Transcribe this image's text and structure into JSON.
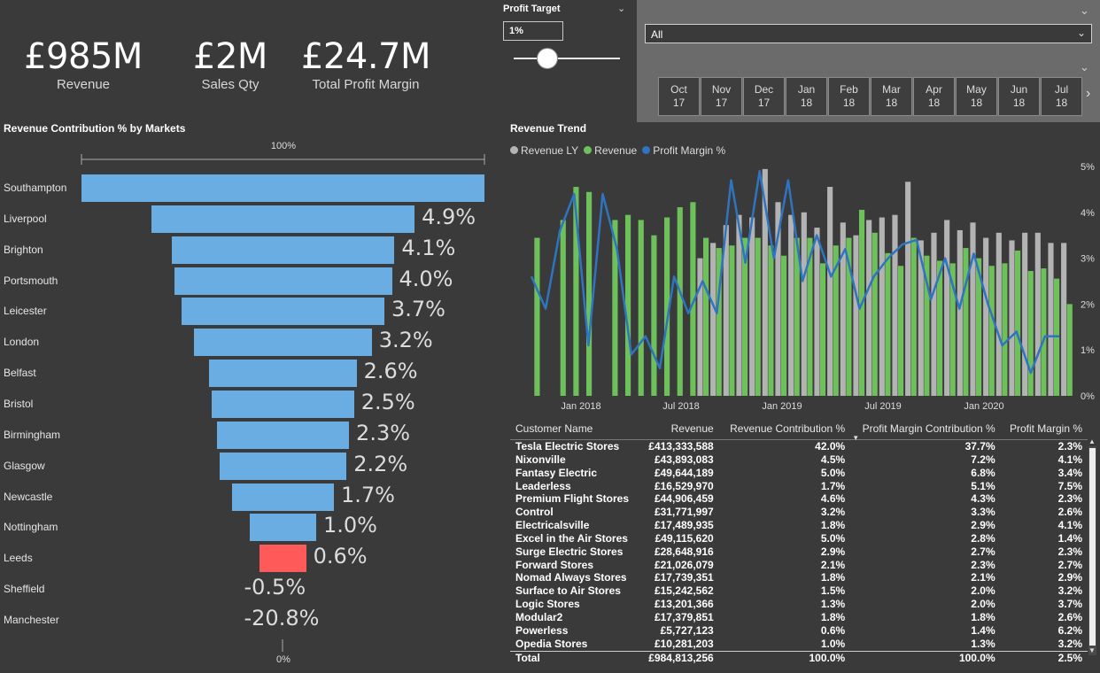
{
  "kpis": [
    {
      "value": "£985M",
      "label": "Revenue"
    },
    {
      "value": "£2M",
      "label": "Sales Qty"
    },
    {
      "value": "£24.7M",
      "label": "Total Profit Margin"
    }
  ],
  "profit_target": {
    "title": "Profit Target",
    "value": "1%",
    "level": 0.3
  },
  "date_slicer": {
    "dropdown_value": "All",
    "months": [
      {
        "m": "Oct",
        "y": "17"
      },
      {
        "m": "Nov",
        "y": "17"
      },
      {
        "m": "Dec",
        "y": "17"
      },
      {
        "m": "Jan",
        "y": "18"
      },
      {
        "m": "Feb",
        "y": "18"
      },
      {
        "m": "Mar",
        "y": "18"
      },
      {
        "m": "Apr",
        "y": "18"
      },
      {
        "m": "May",
        "y": "18"
      },
      {
        "m": "Jun",
        "y": "18"
      },
      {
        "m": "Jul",
        "y": "18"
      }
    ]
  },
  "icons": {
    "chevron": "chevron-down-icon",
    "next": "chevron-right-icon"
  },
  "colors": {
    "bar": "#6aade2",
    "highlight": "#ff5a5a",
    "revenue_ly": "#b3b3b3",
    "revenue": "#6ec05a",
    "profit_margin": "#2f74c0"
  },
  "funnel": {
    "title": "Revenue Contribution % by Markets",
    "top_label": "100%",
    "bottom_label": "0%",
    "markets": [
      {
        "name": "Southampton",
        "value": 100,
        "label": ""
      },
      {
        "name": "Liverpool",
        "value": 4.9,
        "label": "4.9%"
      },
      {
        "name": "Brighton",
        "value": 4.1,
        "label": "4.1%"
      },
      {
        "name": "Portsmouth",
        "value": 4.0,
        "label": "4.0%"
      },
      {
        "name": "Leicester",
        "value": 3.7,
        "label": "3.7%"
      },
      {
        "name": "London",
        "value": 3.2,
        "label": "3.2%"
      },
      {
        "name": "Belfast",
        "value": 2.6,
        "label": "2.6%"
      },
      {
        "name": "Bristol",
        "value": 2.5,
        "label": "2.5%"
      },
      {
        "name": "Birmingham",
        "value": 2.3,
        "label": "2.3%"
      },
      {
        "name": "Glasgow",
        "value": 2.2,
        "label": "2.2%"
      },
      {
        "name": "Newcastle",
        "value": 1.7,
        "label": "1.7%"
      },
      {
        "name": "Nottingham",
        "value": 1.0,
        "label": "1.0%"
      },
      {
        "name": "Leeds",
        "value": 0.6,
        "label": "0.6%",
        "highlight": true
      },
      {
        "name": "Sheffield",
        "value": -0.5,
        "label": "-0.5%"
      },
      {
        "name": "Manchester",
        "value": -20.8,
        "label": "-20.8%"
      }
    ]
  },
  "chart_data": {
    "type": "bar",
    "title": "Revenue Trend",
    "series": [
      {
        "name": "Revenue LY",
        "color": "#b3b3b3",
        "values": [
          null,
          null,
          null,
          null,
          null,
          null,
          null,
          null,
          null,
          null,
          null,
          null,
          null,
          5.4,
          6.0,
          6.7,
          7.1,
          7.0,
          8.9,
          7.6,
          7.1,
          7.2,
          6.6,
          8.2,
          6.8,
          6.3,
          6.9,
          7.0,
          7.1,
          8.4,
          6.1,
          6.4,
          6.9,
          6.5,
          6.8,
          6.2,
          6.4,
          6.1,
          6.4,
          6.4,
          6.0,
          6.0
        ]
      },
      {
        "name": "Revenue",
        "color": "#6ec05a",
        "values": [
          6.2,
          null,
          6.9,
          8.2,
          8.0,
          null,
          6.9,
          7.1,
          6.9,
          6.3,
          7.0,
          7.4,
          7.6,
          6.2,
          5.8,
          5.9,
          6.2,
          6.2,
          5.9,
          5.5,
          6.2,
          6.2,
          5.2,
          5.9,
          6.2,
          7.3,
          6.4,
          5.6,
          5.1,
          6.2,
          5.5,
          5.3,
          5.2,
          5.8,
          5.4,
          5.1,
          5.2,
          5.7,
          4.9,
          5.0,
          4.6,
          3.6
        ]
      },
      {
        "name": "Profit Margin %",
        "color": "#2f74c0",
        "values": [
          2.6,
          1.9,
          3.6,
          4.4,
          1.1,
          4.4,
          3.2,
          0.9,
          1.3,
          0.6,
          2.6,
          1.8,
          2.5,
          1.8,
          4.7,
          2.9,
          4.9,
          3.0,
          4.7,
          2.5,
          3.5,
          2.6,
          3.2,
          1.9,
          2.6,
          3.0,
          3.3,
          3.4,
          2.1,
          3.0,
          1.9,
          3.1,
          2.0,
          1.1,
          1.4,
          0.5,
          1.3,
          1.3
        ]
      }
    ],
    "x_ticks": [
      "Jan 2018",
      "Jul 2018",
      "Jan 2019",
      "Jul 2019",
      "Jan 2020"
    ],
    "y2_ticks": [
      "0%",
      "1%",
      "2%",
      "3%",
      "4%",
      "5%"
    ],
    "ylim_revenue": [
      0,
      9.0
    ],
    "ylim_margin": [
      0,
      5
    ]
  },
  "table": {
    "headers": [
      "Customer Name",
      "Revenue",
      "Revenue Contribution %",
      "Profit Margin Contribution %",
      "Profit Margin %"
    ],
    "rows": [
      [
        "Tesla Electric Stores",
        "£413,333,588",
        "42.0%",
        "37.7%",
        "2.3%"
      ],
      [
        "Nixonville",
        "£43,893,083",
        "4.5%",
        "7.2%",
        "4.1%"
      ],
      [
        "Fantasy Electric",
        "£49,644,189",
        "5.0%",
        "6.8%",
        "3.4%"
      ],
      [
        "Leaderless",
        "£16,529,970",
        "1.7%",
        "5.1%",
        "7.5%"
      ],
      [
        "Premium Flight Stores",
        "£44,906,459",
        "4.6%",
        "4.3%",
        "2.3%"
      ],
      [
        "Control",
        "£31,771,997",
        "3.2%",
        "3.3%",
        "2.6%"
      ],
      [
        "Electricalsville",
        "£17,489,935",
        "1.8%",
        "2.9%",
        "4.1%"
      ],
      [
        "Excel in the Air Stores",
        "£49,115,620",
        "5.0%",
        "2.8%",
        "1.4%"
      ],
      [
        "Surge Electric Stores",
        "£28,648,916",
        "2.9%",
        "2.7%",
        "2.3%"
      ],
      [
        "Forward Stores",
        "£21,026,079",
        "2.1%",
        "2.3%",
        "2.7%"
      ],
      [
        "Nomad Always Stores",
        "£17,739,351",
        "1.8%",
        "2.1%",
        "2.9%"
      ],
      [
        "Surface to Air Stores",
        "£15,242,562",
        "1.5%",
        "2.0%",
        "3.2%"
      ],
      [
        "Logic Stores",
        "£13,201,366",
        "1.3%",
        "2.0%",
        "3.7%"
      ],
      [
        "Modular2",
        "£17,379,851",
        "1.8%",
        "1.8%",
        "2.6%"
      ],
      [
        "Powerless",
        "£5,727,123",
        "0.6%",
        "1.4%",
        "6.2%"
      ],
      [
        "Opedia Stores",
        "£10,281,203",
        "1.0%",
        "1.3%",
        "3.2%"
      ]
    ],
    "total": [
      "Total",
      "£984,813,256",
      "100.0%",
      "100.0%",
      "2.5%"
    ]
  }
}
